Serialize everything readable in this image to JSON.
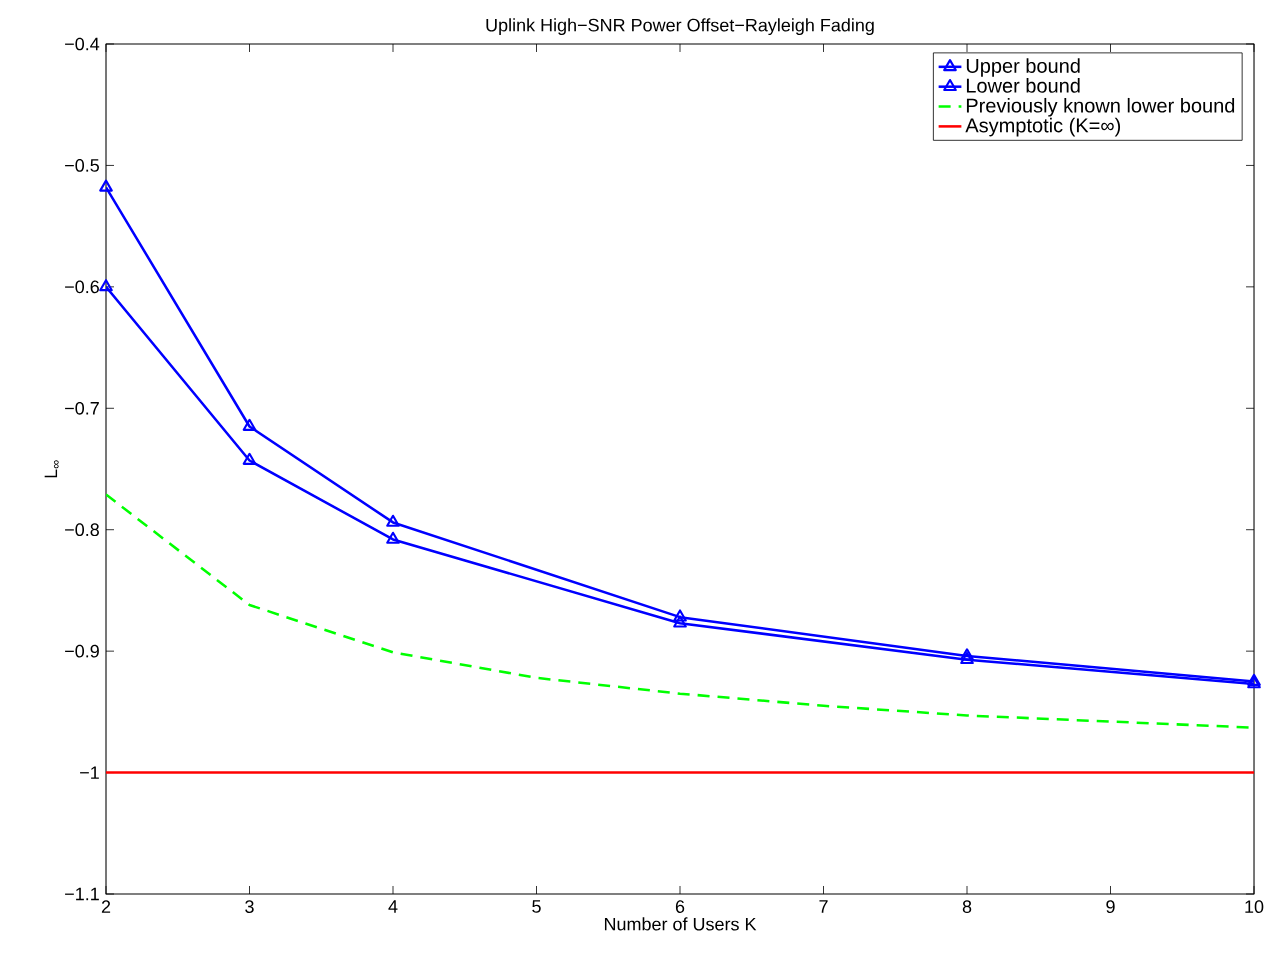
{
  "chart_data": {
    "type": "line",
    "title": "Uplink High−SNR Power Offset−Rayleigh Fading",
    "xlabel": "Number of Users K",
    "ylabel": "L$_{∞}$",
    "xlim": [
      2,
      10
    ],
    "xticks": [
      2,
      3,
      4,
      5,
      6,
      7,
      8,
      9,
      10
    ],
    "ylim": [
      -1.1,
      -0.4
    ],
    "yticks": [
      {
        "value": -1.1,
        "label": "−1.1"
      },
      {
        "value": -1,
        "label": "−1"
      },
      {
        "value": -0.9,
        "label": "−0.9"
      },
      {
        "value": -0.8,
        "label": "−0.8"
      },
      {
        "value": -0.7,
        "label": "−0.7"
      },
      {
        "value": -0.6,
        "label": "−0.6"
      },
      {
        "value": -0.5,
        "label": "−0.5"
      },
      {
        "value": -0.4,
        "label": "−0.4"
      }
    ],
    "grid": false,
    "legend": "top right",
    "series": [
      {
        "name": "Upper bound",
        "color": "#0000ff",
        "marker": "triangle",
        "line_style": "solid",
        "x": [
          2,
          3,
          4,
          6,
          8,
          10
        ],
        "values": [
          -0.518,
          -0.715,
          -0.794,
          -0.872,
          -0.904,
          -0.925
        ]
      },
      {
        "name": "Lower bound",
        "color": "#0000ff",
        "marker": "triangle",
        "line_style": "solid",
        "x": [
          2,
          3,
          4,
          6,
          8,
          10
        ],
        "values": [
          -0.6,
          -0.743,
          -0.808,
          -0.877,
          -0.907,
          -0.927
        ]
      },
      {
        "name": "Previously known lower bound",
        "color": "#00ff00",
        "marker": "none",
        "line_style": "dashed",
        "x": [
          2,
          3,
          4,
          5,
          6,
          7,
          8,
          9,
          10
        ],
        "values": [
          -0.771,
          -0.862,
          -0.901,
          -0.922,
          -0.935,
          -0.945,
          -0.953,
          -0.958,
          -0.963
        ]
      },
      {
        "name": "Asymptotic (K=∞)",
        "color": "#ff0000",
        "marker": "none",
        "line_style": "solid",
        "x": [
          2,
          10
        ],
        "values": [
          -1,
          -1
        ]
      }
    ]
  }
}
